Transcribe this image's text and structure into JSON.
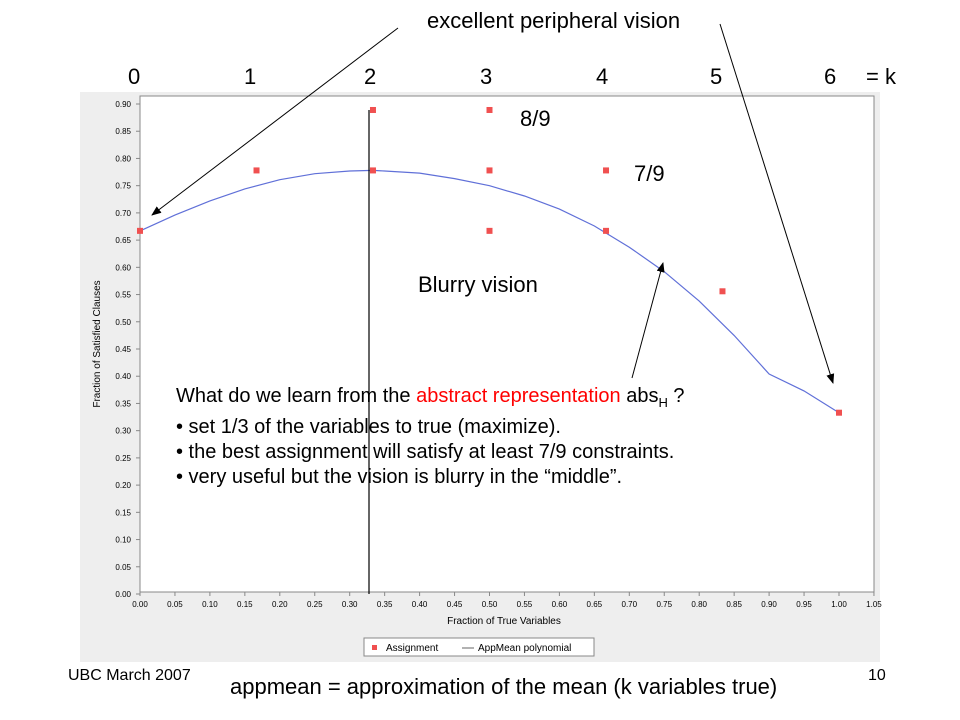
{
  "slide": {
    "annotation_top": "excellent peripheral vision",
    "k_values": [
      "0",
      "1",
      "2",
      "3",
      "4",
      "5",
      "6"
    ],
    "k_suffix": "= k",
    "label_8_9": "8/9",
    "label_7_9": "7/9",
    "blurry_label": "Blurry vision",
    "question_prefix": "What do we learn from the ",
    "question_red": "abstract representation",
    "question_abs": " abs",
    "question_sub": "H",
    "question_suffix": " ?",
    "bullets": [
      "• set 1/3 of the variables to true (maximize).",
      "• the best assignment will satisfy at least 7/9 constraints.",
      "• very useful but the vision is blurry in the “middle”."
    ],
    "footer_left": "UBC March 2007",
    "footer_right": "10",
    "footer_caption": "appmean = approximation of the mean (k variables true)"
  },
  "colors": {
    "assignment_marker": "#f05050",
    "polynomial_line": "#6070d8",
    "panel_bg": "#eeeeee",
    "highlight_text": "#ff0000"
  },
  "chart_data": {
    "type": "scatter",
    "xlabel": "Fraction of True Variables",
    "ylabel": "Fraction of Satisfied Clauses",
    "xlim": [
      0,
      1.05
    ],
    "ylim": [
      0,
      0.92
    ],
    "x_ticks": [
      "0.00",
      "0.05",
      "0.10",
      "0.15",
      "0.20",
      "0.25",
      "0.30",
      "0.35",
      "0.40",
      "0.45",
      "0.50",
      "0.55",
      "0.60",
      "0.65",
      "0.70",
      "0.75",
      "0.80",
      "0.85",
      "0.90",
      "0.95",
      "1.00",
      "1.05"
    ],
    "y_ticks": [
      "0.00",
      "0.05",
      "0.10",
      "0.15",
      "0.20",
      "0.25",
      "0.30",
      "0.35",
      "0.40",
      "0.45",
      "0.50",
      "0.55",
      "0.60",
      "0.65",
      "0.70",
      "0.75",
      "0.80",
      "0.85",
      "0.90"
    ],
    "grid": false,
    "legend_position": "bottom-center",
    "series": [
      {
        "name": "Assignment",
        "kind": "markers",
        "points": [
          [
            0.0,
            0.667
          ],
          [
            0.1667,
            0.778
          ],
          [
            0.3333,
            0.889
          ],
          [
            0.3333,
            0.778
          ],
          [
            0.5,
            0.889
          ],
          [
            0.5,
            0.778
          ],
          [
            0.5,
            0.667
          ],
          [
            0.6667,
            0.778
          ],
          [
            0.6667,
            0.667
          ],
          [
            0.8333,
            0.556
          ],
          [
            1.0,
            0.333
          ]
        ]
      },
      {
        "name": "AppMean polynomial",
        "kind": "line",
        "points": [
          [
            0.0,
            0.667
          ],
          [
            0.05,
            0.696
          ],
          [
            0.1,
            0.722
          ],
          [
            0.15,
            0.744
          ],
          [
            0.2,
            0.761
          ],
          [
            0.25,
            0.772
          ],
          [
            0.3,
            0.777
          ],
          [
            0.3333,
            0.778
          ],
          [
            0.35,
            0.777
          ],
          [
            0.4,
            0.773
          ],
          [
            0.45,
            0.763
          ],
          [
            0.5,
            0.75
          ],
          [
            0.55,
            0.731
          ],
          [
            0.6,
            0.707
          ],
          [
            0.65,
            0.676
          ],
          [
            0.7,
            0.637
          ],
          [
            0.75,
            0.592
          ],
          [
            0.8,
            0.538
          ],
          [
            0.85,
            0.475
          ],
          [
            0.9,
            0.404
          ],
          [
            0.95,
            0.373
          ],
          [
            1.0,
            0.333
          ]
        ]
      }
    ]
  }
}
